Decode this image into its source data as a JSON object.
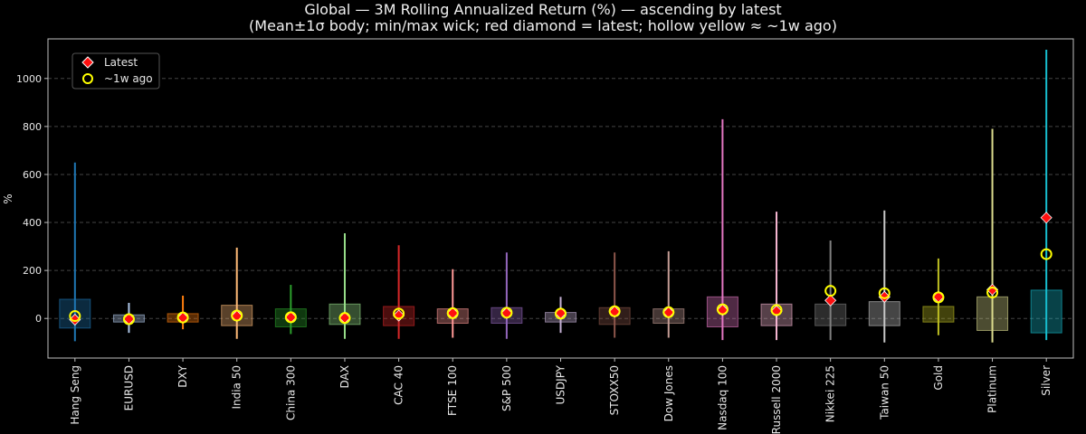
{
  "chart_data": {
    "type": "box",
    "title": "Global — 3M Rolling Annualized Return (%) — ascending by latest",
    "subtitle": "(Mean±1σ body; min/max wick; red diamond = latest; hollow yellow ≈ ~1w ago)",
    "xlabel": "",
    "ylabel": "%",
    "ylim": [
      -165,
      1165
    ],
    "yticks": [
      0,
      200,
      400,
      600,
      800,
      1000
    ],
    "grid": true,
    "legend": {
      "placement": "top-left",
      "entries": [
        {
          "label": "Latest",
          "marker": "red-diamond"
        },
        {
          "label": "~1w ago",
          "marker": "hollow-yellow-circle"
        }
      ]
    },
    "categories": [
      "Hang Seng",
      "EURUSD",
      "DXY",
      "India 50",
      "China 300",
      "DAX",
      "CAC 40",
      "FTSE 100",
      "S&P 500",
      "USDJPY",
      "STOXX50",
      "Dow Jones",
      "Nasdaq 100",
      "Russell 2000",
      "Nikkei 225",
      "Taiwan 50",
      "Gold",
      "Platinum",
      "Silver"
    ],
    "series": [
      {
        "category": "Hang Seng",
        "color": "#1f77b4",
        "min": -95,
        "max": 650,
        "body_low": -40,
        "body_high": 80,
        "latest": -5,
        "week_ago": 10
      },
      {
        "category": "EURUSD",
        "color": "#aec7e8",
        "min": -60,
        "max": 65,
        "body_low": -15,
        "body_high": 15,
        "latest": -2,
        "week_ago": -3
      },
      {
        "category": "DXY",
        "color": "#ff7f0e",
        "min": -45,
        "max": 95,
        "body_low": -15,
        "body_high": 20,
        "latest": 3,
        "week_ago": 4
      },
      {
        "category": "India 50",
        "color": "#ffbb78",
        "min": -85,
        "max": 295,
        "body_low": -30,
        "body_high": 55,
        "latest": 10,
        "week_ago": 12
      },
      {
        "category": "China 300",
        "color": "#2ca02c",
        "min": -65,
        "max": 140,
        "body_low": -35,
        "body_high": 40,
        "latest": 5,
        "week_ago": 5
      },
      {
        "category": "DAX",
        "color": "#98df8a",
        "min": -85,
        "max": 355,
        "body_low": -25,
        "body_high": 60,
        "latest": 3,
        "week_ago": 2
      },
      {
        "category": "CAC 40",
        "color": "#d62728",
        "min": -85,
        "max": 305,
        "body_low": -30,
        "body_high": 50,
        "latest": 12,
        "week_ago": 20
      },
      {
        "category": "FTSE 100",
        "color": "#ff9896",
        "min": -80,
        "max": 205,
        "body_low": -20,
        "body_high": 40,
        "latest": 22,
        "week_ago": 22
      },
      {
        "category": "S&P 500",
        "color": "#9467bd",
        "min": -85,
        "max": 275,
        "body_low": -20,
        "body_high": 45,
        "latest": 22,
        "week_ago": 24
      },
      {
        "category": "USDJPY",
        "color": "#c5b0d5",
        "min": -60,
        "max": 90,
        "body_low": -15,
        "body_high": 25,
        "latest": 22,
        "week_ago": 20
      },
      {
        "category": "STOXX50",
        "color": "#8c564b",
        "min": -80,
        "max": 275,
        "body_low": -25,
        "body_high": 45,
        "latest": 28,
        "week_ago": 30
      },
      {
        "category": "Dow Jones",
        "color": "#c49c94",
        "min": -80,
        "max": 280,
        "body_low": -20,
        "body_high": 40,
        "latest": 25,
        "week_ago": 26
      },
      {
        "category": "Nasdaq 100",
        "color": "#e377c2",
        "min": -90,
        "max": 830,
        "body_low": -35,
        "body_high": 90,
        "latest": 35,
        "week_ago": 38
      },
      {
        "category": "Russell 2000",
        "color": "#f7b6d2",
        "min": -90,
        "max": 445,
        "body_low": -30,
        "body_high": 60,
        "latest": 30,
        "week_ago": 35
      },
      {
        "category": "Nikkei 225",
        "color": "#7f7f7f",
        "min": -90,
        "max": 325,
        "body_low": -30,
        "body_high": 60,
        "latest": 75,
        "week_ago": 115
      },
      {
        "category": "Taiwan 50",
        "color": "#c7c7c7",
        "min": -100,
        "max": 450,
        "body_low": -30,
        "body_high": 70,
        "latest": 90,
        "week_ago": 105
      },
      {
        "category": "Gold",
        "color": "#bcbd22",
        "min": -70,
        "max": 250,
        "body_low": -15,
        "body_high": 50,
        "latest": 90,
        "week_ago": 88
      },
      {
        "category": "Platinum",
        "color": "#dbdb8d",
        "min": -100,
        "max": 790,
        "body_low": -50,
        "body_high": 90,
        "latest": 120,
        "week_ago": 108
      },
      {
        "category": "Silver",
        "color": "#17becf",
        "min": -90,
        "max": 1120,
        "body_low": -60,
        "body_high": 118,
        "latest": 420,
        "week_ago": 268
      }
    ]
  }
}
